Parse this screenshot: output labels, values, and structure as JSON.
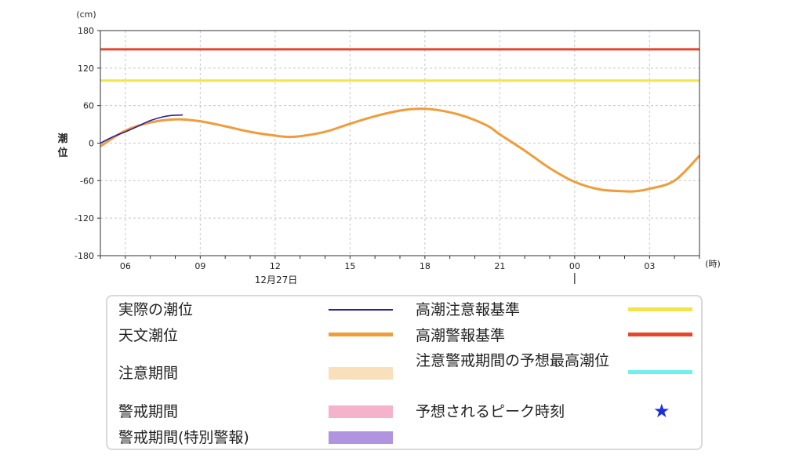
{
  "chart_data": {
    "type": "line",
    "y_unit": "(cm)",
    "x_unit": "(時)",
    "ylabel": "潮位",
    "ylim": [
      -180,
      180
    ],
    "yticks": [
      180,
      120,
      60,
      0,
      -60,
      -120,
      -180
    ],
    "x_range_hours": [
      5,
      29
    ],
    "xticks": [
      {
        "hour": 6,
        "label": "06"
      },
      {
        "hour": 9,
        "label": "09"
      },
      {
        "hour": 12,
        "label": "12"
      },
      {
        "hour": 15,
        "label": "15"
      },
      {
        "hour": 18,
        "label": "18"
      },
      {
        "hour": 21,
        "label": "21"
      },
      {
        "hour": 24,
        "label": "00"
      },
      {
        "hour": 27,
        "label": "03"
      }
    ],
    "date_label": "12月27日",
    "thresholds": [
      {
        "name": "高潮警報基準",
        "value": 150,
        "color": "#e8452c"
      },
      {
        "name": "高潮注意報基準",
        "value": 100,
        "color": "#f2e44a"
      }
    ],
    "series": [
      {
        "name": "天文潮位",
        "color": "#f19c3a",
        "points": [
          [
            5,
            -5
          ],
          [
            6,
            20
          ],
          [
            7,
            33
          ],
          [
            8,
            38
          ],
          [
            9,
            35
          ],
          [
            10,
            27
          ],
          [
            11,
            18
          ],
          [
            12,
            12
          ],
          [
            12.5,
            10
          ],
          [
            13,
            11
          ],
          [
            14,
            18
          ],
          [
            15,
            31
          ],
          [
            16,
            43
          ],
          [
            17,
            52
          ],
          [
            17.7,
            55
          ],
          [
            18.5,
            53
          ],
          [
            19.5,
            44
          ],
          [
            20.5,
            28
          ],
          [
            21,
            14
          ],
          [
            22,
            -12
          ],
          [
            23,
            -40
          ],
          [
            24,
            -62
          ],
          [
            25,
            -74
          ],
          [
            26,
            -77
          ],
          [
            26.4,
            -77
          ],
          [
            27,
            -73
          ],
          [
            28,
            -60
          ],
          [
            29,
            -20
          ]
        ]
      },
      {
        "name": "実際の潮位",
        "color": "#2a1fa0",
        "points": [
          [
            5,
            0
          ],
          [
            5.5,
            10
          ],
          [
            6,
            18
          ],
          [
            6.5,
            27
          ],
          [
            7,
            36
          ],
          [
            7.5,
            42
          ],
          [
            7.8,
            44
          ],
          [
            8.3,
            45
          ]
        ]
      }
    ]
  },
  "legend": {
    "items": [
      {
        "label": "実際の潮位",
        "color": "#2a1fa0"
      },
      {
        "label": "天文潮位",
        "color": "#f19c3a"
      },
      {
        "label": "注意期間",
        "color": "#f9dfba"
      },
      {
        "label": "警戒期間",
        "color": "#f5b3cb"
      },
      {
        "label": "警戒期間(特別警報)",
        "color": "#b094e0"
      },
      {
        "label": "高潮注意報基準",
        "color": "#f2e44a"
      },
      {
        "label": "高潮警報基準",
        "color": "#e8452c"
      },
      {
        "label": "注意警戒期間の予想最高潮位",
        "color": "#6ff0f0"
      },
      {
        "label": "予想されるピーク時刻",
        "color": "#1a2ee0",
        "icon": "star-icon"
      }
    ]
  }
}
